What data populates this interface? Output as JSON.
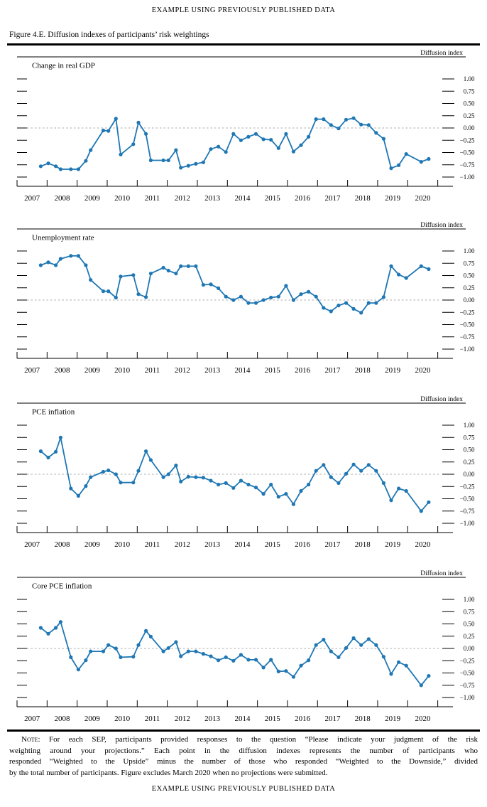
{
  "page": {
    "header": "EXAMPLE USING PREVIOUSLY PUBLISHED DATA",
    "figure_caption": "Figure 4.E. Diffusion indexes of participants’ risk weightings",
    "footer": "EXAMPLE USING PREVIOUSLY PUBLISHED DATA"
  },
  "axes": {
    "axis_label": "Diffusion index",
    "x_range": [
      2007,
      2021
    ],
    "x_tick_years": [
      2007,
      2008,
      2009,
      2010,
      2011,
      2012,
      2013,
      2014,
      2015,
      2016,
      2017,
      2018,
      2019,
      2020,
      2021
    ],
    "x_labels": [
      "2007",
      "2008",
      "2009",
      "2010",
      "2011",
      "2012",
      "2013",
      "2014",
      "2015",
      "2016",
      "2017",
      "2018",
      "2019",
      "2020"
    ],
    "ylim": [
      -1,
      1
    ],
    "y_ticks": [
      1,
      0.75,
      0.5,
      0.25,
      0,
      -0.25,
      -0.5,
      -0.75,
      -1
    ],
    "y_tick_labels": [
      "1.00",
      "0.75",
      "0.50",
      "0.25",
      "0.00",
      "−0.25",
      "−0.50",
      "−0.75",
      "−1.00"
    ],
    "grid": "dashed zero line only"
  },
  "colors": {
    "series_line": "#1f77b4",
    "zero_line": "#ababab",
    "rule": "#000000"
  },
  "chart_data": [
    {
      "type": "line",
      "title": "Change in real GDP",
      "axis_label": "Diffusion index",
      "x": [
        2007.79,
        2008.04,
        2008.29,
        2008.45,
        2008.79,
        2009.04,
        2009.29,
        2009.45,
        2009.87,
        2010.04,
        2010.29,
        2010.45,
        2010.87,
        2011.04,
        2011.29,
        2011.45,
        2011.87,
        2012.04,
        2012.29,
        2012.45,
        2012.7,
        2012.95,
        2013.2,
        2013.45,
        2013.7,
        2013.95,
        2014.2,
        2014.45,
        2014.7,
        2014.95,
        2015.2,
        2015.45,
        2015.7,
        2015.95,
        2016.2,
        2016.45,
        2016.7,
        2016.95,
        2017.2,
        2017.45,
        2017.7,
        2017.95,
        2018.2,
        2018.45,
        2018.7,
        2018.95,
        2019.2,
        2019.45,
        2019.7,
        2019.95,
        2020.45,
        2020.7
      ],
      "values": [
        -0.78,
        -0.72,
        -0.78,
        -0.84,
        -0.84,
        -0.84,
        -0.67,
        -0.45,
        -0.05,
        -0.06,
        0.19,
        -0.54,
        -0.33,
        0.11,
        -0.12,
        -0.66,
        -0.66,
        -0.66,
        -0.45,
        -0.81,
        -0.77,
        -0.73,
        -0.7,
        -0.43,
        -0.38,
        -0.49,
        -0.12,
        -0.25,
        -0.18,
        -0.12,
        -0.23,
        -0.24,
        -0.41,
        -0.12,
        -0.48,
        -0.35,
        -0.18,
        0.18,
        0.18,
        0.06,
        -0.01,
        0.17,
        0.2,
        0.07,
        0.06,
        -0.1,
        -0.22,
        -0.82,
        -0.76,
        -0.53,
        -0.69,
        -0.63
      ]
    },
    {
      "type": "line",
      "title": "Unemployment rate",
      "axis_label": "Diffusion index",
      "x": [
        2007.79,
        2008.04,
        2008.29,
        2008.45,
        2008.79,
        2009.04,
        2009.29,
        2009.45,
        2009.87,
        2010.04,
        2010.29,
        2010.45,
        2010.87,
        2011.04,
        2011.29,
        2011.45,
        2011.87,
        2012.04,
        2012.29,
        2012.45,
        2012.7,
        2012.95,
        2013.2,
        2013.45,
        2013.7,
        2013.95,
        2014.2,
        2014.45,
        2014.7,
        2014.95,
        2015.2,
        2015.45,
        2015.7,
        2015.95,
        2016.2,
        2016.45,
        2016.7,
        2016.95,
        2017.2,
        2017.45,
        2017.7,
        2017.95,
        2018.2,
        2018.45,
        2018.7,
        2018.95,
        2019.2,
        2019.45,
        2019.7,
        2019.95,
        2020.45,
        2020.7
      ],
      "values": [
        0.71,
        0.77,
        0.71,
        0.84,
        0.9,
        0.9,
        0.71,
        0.41,
        0.18,
        0.18,
        0.05,
        0.48,
        0.51,
        0.12,
        0.06,
        0.54,
        0.66,
        0.6,
        0.54,
        0.69,
        0.69,
        0.69,
        0.31,
        0.32,
        0.24,
        0.07,
        0.0,
        0.07,
        -0.06,
        -0.06,
        0.0,
        0.05,
        0.07,
        0.29,
        0.0,
        0.12,
        0.17,
        0.07,
        -0.16,
        -0.23,
        -0.11,
        -0.06,
        -0.18,
        -0.26,
        -0.06,
        -0.06,
        0.06,
        0.69,
        0.52,
        0.45,
        0.69,
        0.63
      ]
    },
    {
      "type": "line",
      "title": "PCE inflation",
      "axis_label": "Diffusion index",
      "x": [
        2007.79,
        2008.04,
        2008.29,
        2008.45,
        2008.79,
        2009.04,
        2009.29,
        2009.45,
        2009.87,
        2010.04,
        2010.29,
        2010.45,
        2010.87,
        2011.04,
        2011.29,
        2011.45,
        2011.87,
        2012.04,
        2012.29,
        2012.45,
        2012.7,
        2012.95,
        2013.2,
        2013.45,
        2013.7,
        2013.95,
        2014.2,
        2014.45,
        2014.7,
        2014.95,
        2015.2,
        2015.45,
        2015.7,
        2015.95,
        2016.2,
        2016.45,
        2016.7,
        2016.95,
        2017.2,
        2017.45,
        2017.7,
        2017.95,
        2018.2,
        2018.45,
        2018.7,
        2018.95,
        2019.2,
        2019.45,
        2019.7,
        2019.95,
        2020.45,
        2020.7
      ],
      "values": [
        0.47,
        0.34,
        0.46,
        0.75,
        -0.29,
        -0.44,
        -0.24,
        -0.06,
        0.05,
        0.08,
        0.0,
        -0.17,
        -0.17,
        0.07,
        0.47,
        0.29,
        -0.06,
        0.0,
        0.18,
        -0.15,
        -0.05,
        -0.06,
        -0.07,
        -0.13,
        -0.21,
        -0.18,
        -0.28,
        -0.13,
        -0.21,
        -0.27,
        -0.4,
        -0.21,
        -0.46,
        -0.4,
        -0.61,
        -0.34,
        -0.21,
        0.07,
        0.19,
        -0.06,
        -0.18,
        0.01,
        0.2,
        0.07,
        0.19,
        0.07,
        -0.18,
        -0.53,
        -0.29,
        -0.34,
        -0.75,
        -0.57
      ]
    },
    {
      "type": "line",
      "title": "Core PCE inflation",
      "axis_label": "Diffusion index",
      "x": [
        2007.79,
        2008.04,
        2008.29,
        2008.45,
        2008.79,
        2009.04,
        2009.29,
        2009.45,
        2009.87,
        2010.04,
        2010.29,
        2010.45,
        2010.87,
        2011.04,
        2011.29,
        2011.45,
        2011.87,
        2012.04,
        2012.29,
        2012.45,
        2012.7,
        2012.95,
        2013.2,
        2013.45,
        2013.7,
        2013.95,
        2014.2,
        2014.45,
        2014.7,
        2014.95,
        2015.2,
        2015.45,
        2015.7,
        2015.95,
        2016.2,
        2016.45,
        2016.7,
        2016.95,
        2017.2,
        2017.45,
        2017.7,
        2017.95,
        2018.2,
        2018.45,
        2018.7,
        2018.95,
        2019.2,
        2019.45,
        2019.7,
        2019.95,
        2020.45,
        2020.7
      ],
      "values": [
        0.42,
        0.3,
        0.42,
        0.54,
        -0.18,
        -0.43,
        -0.24,
        -0.06,
        -0.06,
        0.07,
        0.0,
        -0.18,
        -0.17,
        0.07,
        0.36,
        0.24,
        -0.06,
        0.01,
        0.13,
        -0.16,
        -0.06,
        -0.06,
        -0.11,
        -0.16,
        -0.24,
        -0.18,
        -0.25,
        -0.13,
        -0.23,
        -0.23,
        -0.39,
        -0.23,
        -0.47,
        -0.46,
        -0.58,
        -0.35,
        -0.24,
        0.07,
        0.18,
        -0.06,
        -0.18,
        0.01,
        0.21,
        0.07,
        0.19,
        0.07,
        -0.17,
        -0.52,
        -0.28,
        -0.35,
        -0.75,
        -0.56
      ]
    }
  ],
  "note": {
    "label": "Note:",
    "lines": [
      "For each SEP, participants provided responses to the question “Please indicate your judgment of the risk",
      "weighting around your projections.” Each point in the diffusion indexes represents the number of participants who",
      "responded “Weighted to the Upside” minus the number of those who responded “Weighted to the Downside,” divided",
      "by the total number of participants. Figure excludes March 2020 when no projections were submitted."
    ]
  }
}
